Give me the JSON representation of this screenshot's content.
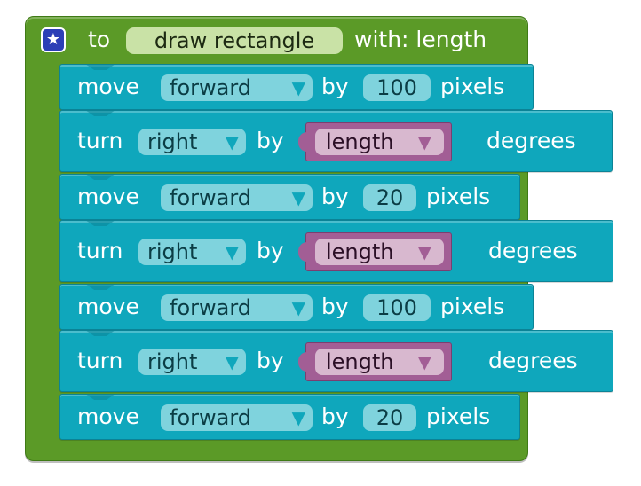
{
  "procedure": {
    "to_label": "to",
    "name": "draw rectangle",
    "with_label": "with: length",
    "icon": "star-icon"
  },
  "blocks": [
    {
      "type": "move",
      "verb": "move",
      "dir": "forward",
      "by": "by",
      "value": "100",
      "unit": "pixels"
    },
    {
      "type": "turn",
      "verb": "turn",
      "dir": "right",
      "by": "by",
      "var": "length",
      "unit": "degrees"
    },
    {
      "type": "move",
      "verb": "move",
      "dir": "forward",
      "by": "by",
      "value": "20",
      "unit": "pixels"
    },
    {
      "type": "turn",
      "verb": "turn",
      "dir": "right",
      "by": "by",
      "var": "length",
      "unit": "degrees"
    },
    {
      "type": "move",
      "verb": "move",
      "dir": "forward",
      "by": "by",
      "value": "100",
      "unit": "pixels"
    },
    {
      "type": "turn",
      "verb": "turn",
      "dir": "right",
      "by": "by",
      "var": "length",
      "unit": "degrees"
    },
    {
      "type": "move",
      "verb": "move",
      "dir": "forward",
      "by": "by",
      "value": "20",
      "unit": "pixels"
    }
  ],
  "colors": {
    "procedure": "#5b9a27",
    "motion": "#0fa7bc",
    "variable": "#a25e95"
  }
}
